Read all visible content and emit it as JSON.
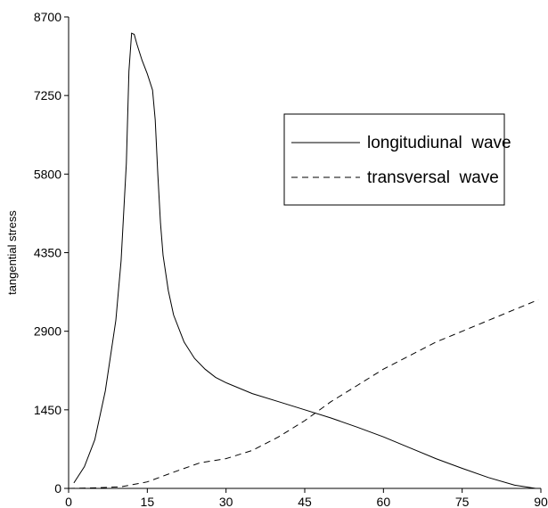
{
  "chart_data": {
    "type": "line",
    "title": "",
    "xlabel": "",
    "ylabel": "tangential stress",
    "xlim": [
      0,
      90
    ],
    "ylim": [
      0,
      8700
    ],
    "x_ticks": [
      "0",
      "15",
      "30",
      "45",
      "60",
      "75",
      "90"
    ],
    "y_ticks": [
      "0",
      "1450",
      "2900",
      "4350",
      "5800",
      "7250",
      "8700"
    ],
    "grid": false,
    "legend_position": "top-right",
    "series": [
      {
        "name": "longitudiunal  wave",
        "style": "solid",
        "color": "#000000",
        "x": [
          1,
          3,
          5,
          7,
          9,
          10,
          11,
          11.5,
          12,
          12.5,
          13,
          14,
          15,
          16,
          16.5,
          17,
          17.5,
          18,
          19,
          20,
          22,
          24,
          26,
          28,
          30,
          35,
          40,
          45,
          50,
          55,
          60,
          65,
          70,
          75,
          80,
          85,
          89
        ],
        "y": [
          100,
          400,
          900,
          1800,
          3100,
          4200,
          6000,
          7700,
          8400,
          8380,
          8200,
          7900,
          7650,
          7350,
          6800,
          5800,
          4900,
          4300,
          3650,
          3200,
          2700,
          2400,
          2200,
          2050,
          1950,
          1750,
          1600,
          1450,
          1300,
          1130,
          950,
          750,
          550,
          370,
          200,
          60,
          0
        ]
      },
      {
        "name": "transversal  wave",
        "style": "dashed",
        "color": "#000000",
        "x": [
          0,
          5,
          10,
          15,
          20,
          25,
          30,
          35,
          40,
          45,
          50,
          55,
          60,
          65,
          70,
          75,
          80,
          85,
          89.5
        ],
        "y": [
          0,
          10,
          30,
          120,
          300,
          470,
          550,
          700,
          950,
          1250,
          1600,
          1900,
          2200,
          2450,
          2700,
          2900,
          3100,
          3300,
          3480
        ]
      }
    ]
  }
}
